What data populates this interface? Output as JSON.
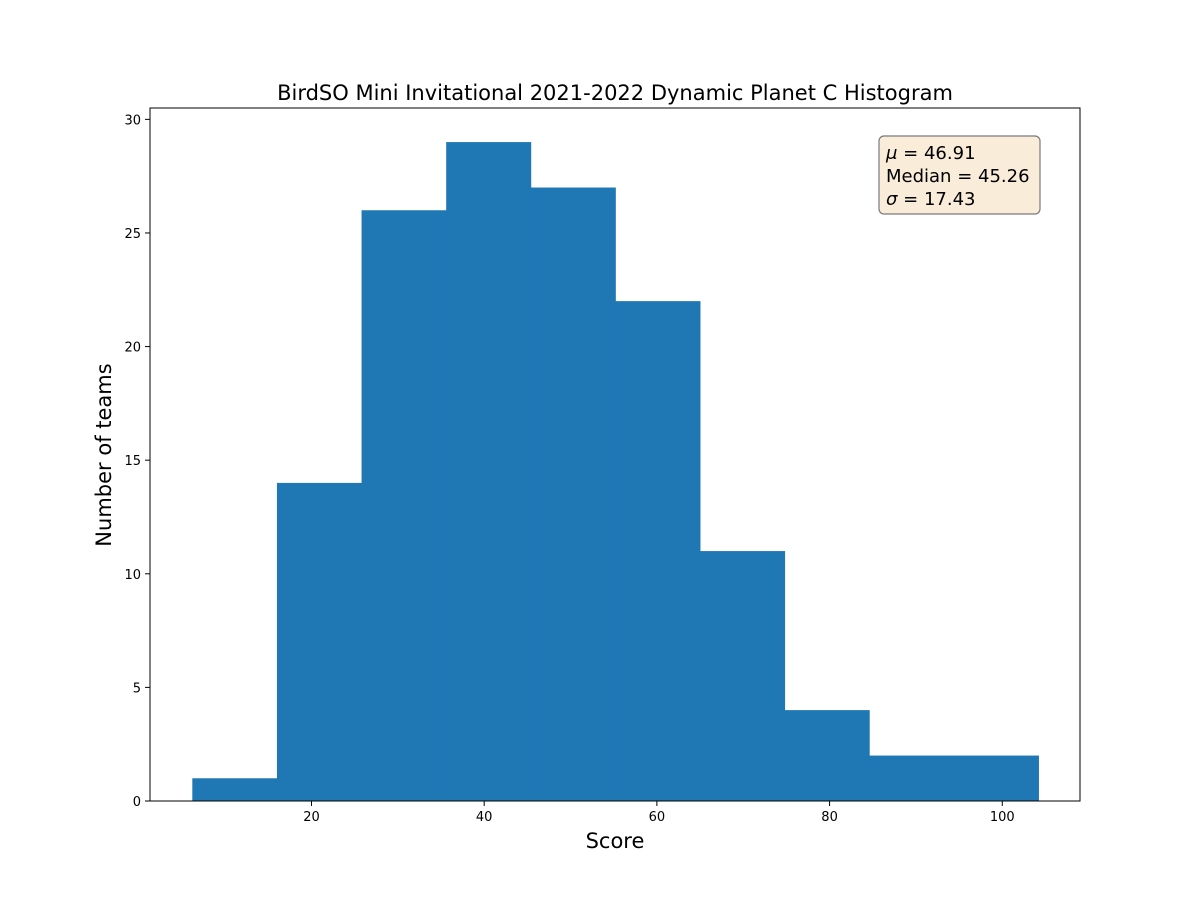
{
  "chart_data": {
    "type": "bar",
    "title": "BirdSO Mini Invitational 2021-2022 Dynamic Planet C Histogram",
    "xlabel": "Score",
    "ylabel": "Number of teams",
    "xlim": [
      1.3,
      109.0
    ],
    "ylim": [
      0,
      30.5
    ],
    "x_ticks": [
      20,
      40,
      60,
      80,
      100
    ],
    "y_ticks": [
      0,
      5,
      10,
      15,
      20,
      25,
      30
    ],
    "bin_edges": [
      6.2,
      16.0,
      25.8,
      35.6,
      45.4,
      55.2,
      65.0,
      74.8,
      84.6,
      94.4,
      104.2
    ],
    "values": [
      1,
      14,
      26,
      29,
      27,
      22,
      11,
      4,
      2,
      2
    ],
    "bar_color": "#1f77b4",
    "grid": false,
    "stats_box": {
      "placement": "top-right",
      "lines": [
        {
          "symbol": "μ",
          "value": "46.91"
        },
        {
          "symbol": "Median",
          "value": "45.26"
        },
        {
          "symbol": "σ",
          "value": "17.43"
        }
      ],
      "fill": "#f9ecd8",
      "stroke": "#7a7a7a"
    }
  }
}
